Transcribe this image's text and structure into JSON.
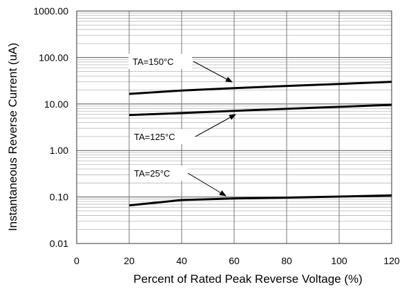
{
  "chart_data": {
    "type": "line",
    "xlabel": "Percent of  Rated Peak Reverse Voltage (%)",
    "ylabel": "Instantaneous Reverse Current (uA)",
    "xlim": [
      0,
      120
    ],
    "ylim": [
      0.01,
      1000
    ],
    "yscale": "log",
    "x_ticks": [
      0,
      20,
      40,
      60,
      80,
      100,
      120
    ],
    "x_tick_labels": [
      "0",
      "20",
      "40",
      "60",
      "80",
      "100",
      "120"
    ],
    "y_ticks": [
      0.01,
      0.1,
      1,
      10,
      100,
      1000
    ],
    "y_tick_labels": [
      "0.01",
      "0.10",
      "1.00",
      "10.00",
      "100.00",
      "1000.00"
    ],
    "grid": true,
    "line_color": "#000000",
    "grid_color": "#b8b8b8",
    "series": [
      {
        "name": "TA=150°C",
        "x": [
          20,
          40,
          60,
          80,
          100,
          120
        ],
        "y": [
          16.5,
          19.5,
          22,
          24.5,
          27,
          30
        ]
      },
      {
        "name": "TA=125°C",
        "x": [
          20,
          40,
          60,
          80,
          100,
          120
        ],
        "y": [
          5.8,
          6.4,
          7.1,
          7.9,
          8.7,
          9.6
        ]
      },
      {
        "name": "TA=25°C",
        "x": [
          20,
          40,
          60,
          80,
          100,
          120
        ],
        "y": [
          0.066,
          0.086,
          0.093,
          0.097,
          0.102,
          0.108
        ]
      }
    ],
    "annotations": [
      {
        "text": "TA=150°C",
        "series": 0
      },
      {
        "text": "TA=125°C",
        "series": 1
      },
      {
        "text": "TA=25°C",
        "series": 2
      }
    ]
  }
}
